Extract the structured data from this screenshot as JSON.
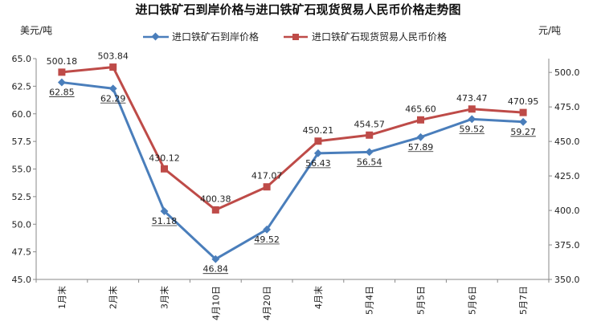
{
  "chart_data": {
    "type": "line",
    "title": "进口铁矿石到岸价格与进口铁矿石现货贸易人民币价格走势图",
    "y_left_unit": "美元/吨",
    "y_right_unit": "元/吨",
    "categories": [
      "1月末",
      "2月末",
      "3月末",
      "4月10日",
      "4月20日",
      "4月末",
      "5月4日",
      "5月5日",
      "5月6日",
      "5月7日"
    ],
    "y_left": {
      "ylim": [
        45.0,
        65.0
      ],
      "ticks": [
        "45.0",
        "47.5",
        "50.0",
        "52.5",
        "55.0",
        "57.5",
        "60.0",
        "62.5",
        "65.0"
      ]
    },
    "y_right": {
      "ylim": [
        350.0,
        510.0
      ],
      "ticks": [
        "350.0",
        "375.0",
        "400.0",
        "425.0",
        "450.0",
        "475.0",
        "500.0"
      ]
    },
    "grid": false,
    "legend_position": "top",
    "series": [
      {
        "name": "进口铁矿石到岸价格",
        "axis": "left",
        "color": "#4a7ebb",
        "marker": "diamond",
        "values": [
          62.85,
          62.29,
          51.18,
          46.84,
          49.52,
          56.43,
          56.54,
          57.89,
          59.52,
          59.27
        ],
        "labels": [
          "62.85",
          "62.29",
          "51.18",
          "46.84",
          "49.52",
          "56.43",
          "56.54",
          "57.89",
          "59.52",
          "59.27"
        ]
      },
      {
        "name": "进口铁矿石现货贸易人民币价格",
        "axis": "right",
        "color": "#be4b48",
        "marker": "square",
        "values": [
          500.18,
          503.84,
          430.12,
          400.38,
          417.07,
          450.21,
          454.57,
          465.6,
          473.47,
          470.95
        ],
        "labels": [
          "500.18",
          "503.84",
          "430.12",
          "400.38",
          "417.07",
          "450.21",
          "454.57",
          "465.60",
          "473.47",
          "470.95"
        ]
      }
    ]
  }
}
